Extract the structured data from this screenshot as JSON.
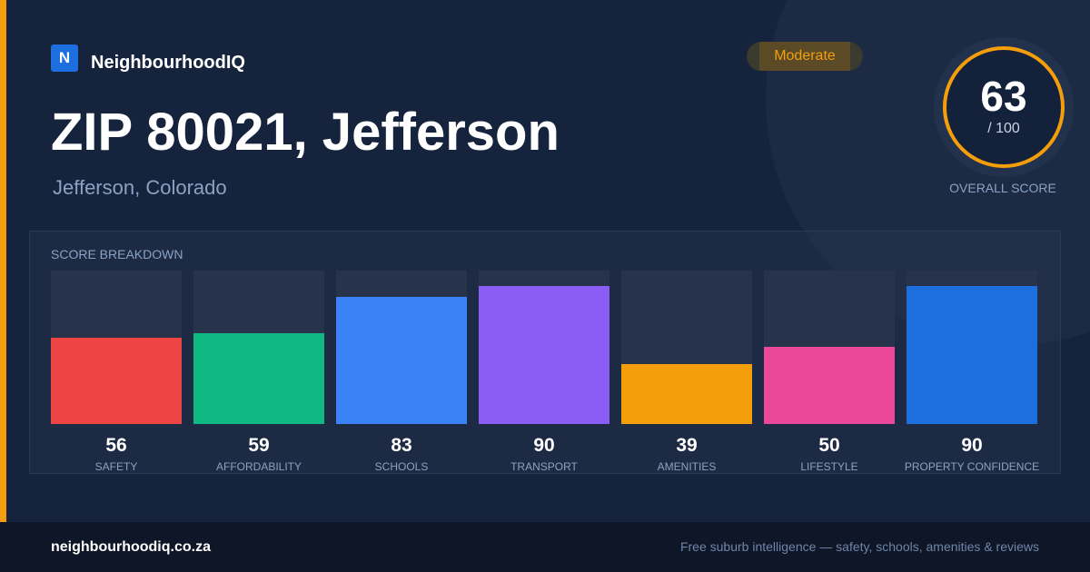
{
  "brand": {
    "logo_letter": "N",
    "name": "NeighbourhoodIQ"
  },
  "badge": {
    "label": "Moderate",
    "color": "#f59e0b"
  },
  "title": "ZIP 80021, Jefferson",
  "subtitle": "Jefferson, Colorado",
  "overall_score": {
    "value": "63",
    "max_label": "/ 100",
    "label": "OVERALL SCORE",
    "fraction": 0.63
  },
  "breakdown_title": "SCORE BREAKDOWN",
  "chart_data": {
    "type": "bar",
    "title": "SCORE BREAKDOWN",
    "ylim": [
      0,
      100
    ],
    "categories": [
      "SAFETY",
      "AFFORDABILITY",
      "SCHOOLS",
      "TRANSPORT",
      "AMENITIES",
      "LIFESTYLE",
      "PROPERTY CONFIDENCE"
    ],
    "values": [
      56,
      59,
      83,
      90,
      39,
      50,
      90
    ],
    "colors": [
      "#ef4444",
      "#10b981",
      "#3b82f6",
      "#8b5cf6",
      "#f59e0b",
      "#ec4899",
      "#1d6fe0"
    ]
  },
  "footer": {
    "url": "neighbourhoodiq.co.za",
    "tagline": "Free suburb intelligence — safety, schools, amenities & reviews"
  }
}
